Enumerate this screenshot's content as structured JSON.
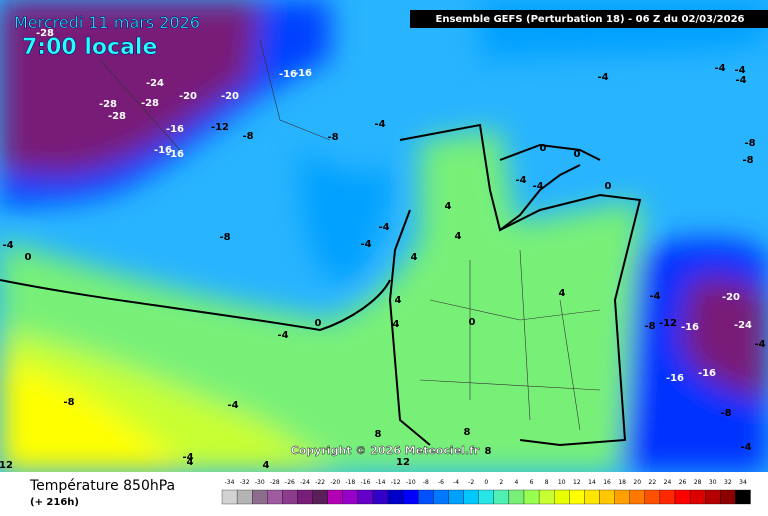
{
  "header": {
    "date": "Mercredi 11 mars 2026",
    "time": "7:00 locale",
    "model": "Ensemble GEFS  (Perturbation 18)  -  06 Z du 02/03/2026",
    "copyright": "Copyright © 2026 Meteociel.fr"
  },
  "footer": {
    "title": "Température 850hPa",
    "lead": "(+ 216h)"
  },
  "contour_labels": [
    -28,
    -24,
    -16,
    -16,
    -28,
    -28,
    -20,
    -20,
    -28,
    -16,
    -12,
    -8,
    -8,
    -4,
    -16,
    -16,
    -8,
    -4,
    -4,
    -4,
    4,
    4,
    4,
    4,
    4,
    0,
    -4,
    0,
    4,
    -4,
    -4,
    -4,
    -4,
    -8,
    -8,
    0,
    0,
    -4,
    -4,
    0,
    -4,
    -20,
    -8,
    -12,
    -16,
    -24,
    -4,
    -16,
    -16,
    -8,
    -4,
    -8,
    -4,
    -4,
    4,
    4,
    8,
    8,
    8,
    12,
    12,
    0
  ],
  "legend": {
    "values": [
      -34,
      -32,
      -30,
      -28,
      -26,
      -24,
      -22,
      -20,
      -18,
      -16,
      -14,
      -12,
      -10,
      -8,
      -6,
      -4,
      -2,
      0,
      2,
      4,
      6,
      8,
      10,
      12,
      14,
      16,
      18,
      20,
      22,
      24,
      26,
      28,
      30,
      32,
      34
    ],
    "colors": [
      "#d2d2d2",
      "#b4b4b4",
      "#8c6e8c",
      "#a05aa0",
      "#8c3c8c",
      "#781e78",
      "#5a1e5a",
      "#b400b4",
      "#9600c8",
      "#6400c8",
      "#3200c8",
      "#0000c8",
      "#0000ff",
      "#0050ff",
      "#0078ff",
      "#00a0ff",
      "#00c8ff",
      "#28e6e6",
      "#50f0b4",
      "#78f078",
      "#96ff50",
      "#c8ff32",
      "#e6ff00",
      "#ffff00",
      "#ffe600",
      "#ffc800",
      "#ffa000",
      "#ff7800",
      "#ff5000",
      "#ff2800",
      "#ff0000",
      "#dc0000",
      "#b40000",
      "#8c0000",
      "#000000"
    ]
  }
}
